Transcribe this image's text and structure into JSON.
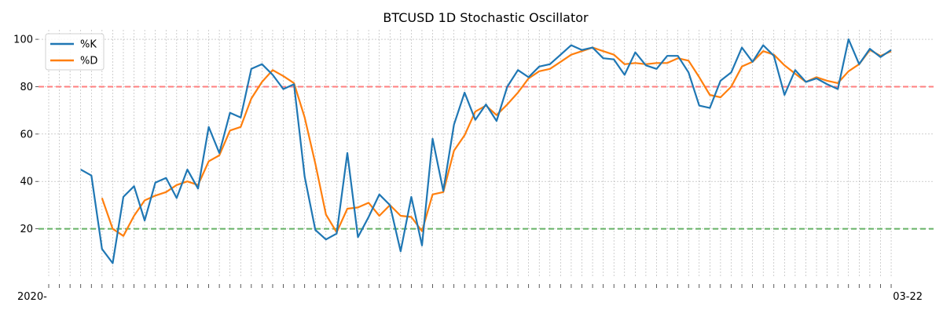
{
  "chart_data": {
    "type": "line",
    "title": "BTCUSD 1D Stochastic Oscillator",
    "xlabel": "",
    "ylabel": "",
    "grid": true,
    "legend_position": "upper-left",
    "x_tick_labels_overlapping": true,
    "x_tick_label_start": "2020-",
    "x_tick_label_end": "03-22",
    "ylim": [
      0,
      104
    ],
    "yticks": [
      20,
      40,
      60,
      80,
      100
    ],
    "x_count": 80,
    "reference_lines": [
      {
        "value": 80,
        "color": "#ff7f7f",
        "style": "dashed"
      },
      {
        "value": 20,
        "color": "#66b266",
        "style": "dashed"
      }
    ],
    "series": [
      {
        "name": "%K",
        "color": "#1f77b4",
        "start_index": 3,
        "values": [
          45,
          42.5,
          11.5,
          5.5,
          33.5,
          38,
          23.5,
          39.5,
          41.5,
          33,
          45,
          37,
          63,
          52,
          69,
          67,
          87.5,
          89.5,
          85,
          79,
          81,
          42,
          19.5,
          15.5,
          18,
          52,
          16.5,
          25,
          34.5,
          30,
          10.5,
          33.5,
          13,
          58,
          36,
          64,
          77.5,
          66,
          72.5,
          65.5,
          80,
          87,
          84,
          88.5,
          89.5,
          93.5,
          97.5,
          95.5,
          96.5,
          92,
          91.5,
          85,
          94.5,
          89,
          87.5,
          93,
          93,
          86,
          72,
          71,
          82.5,
          86,
          96.5,
          90.5,
          97.5,
          93,
          76.5,
          87,
          82,
          83.5,
          81,
          79,
          100,
          89.5,
          96,
          92.5,
          95.5
        ]
      },
      {
        "name": "%D",
        "color": "#ff7f0e",
        "start_index": 5,
        "values": [
          33,
          20,
          17,
          25.5,
          32,
          34,
          35.5,
          38.5,
          40,
          38.5,
          48.5,
          51,
          61.5,
          63,
          75,
          82,
          87,
          84.5,
          81.5,
          67,
          47.5,
          26,
          18.5,
          28.5,
          29,
          31,
          25.5,
          30,
          25.5,
          25,
          19,
          34.5,
          35.5,
          53,
          59.5,
          69.5,
          72,
          68,
          72.5,
          77.5,
          83.5,
          86.5,
          87.5,
          90.5,
          93.5,
          95,
          96.5,
          95,
          93.5,
          89.5,
          90,
          89.5,
          90,
          90,
          92,
          91,
          84,
          76.5,
          75.5,
          80,
          88.5,
          90.5,
          95,
          93.5,
          89,
          85.5,
          82,
          84,
          82.5,
          81.5,
          86.5,
          89.5,
          95.5,
          93,
          95
        ]
      }
    ]
  }
}
